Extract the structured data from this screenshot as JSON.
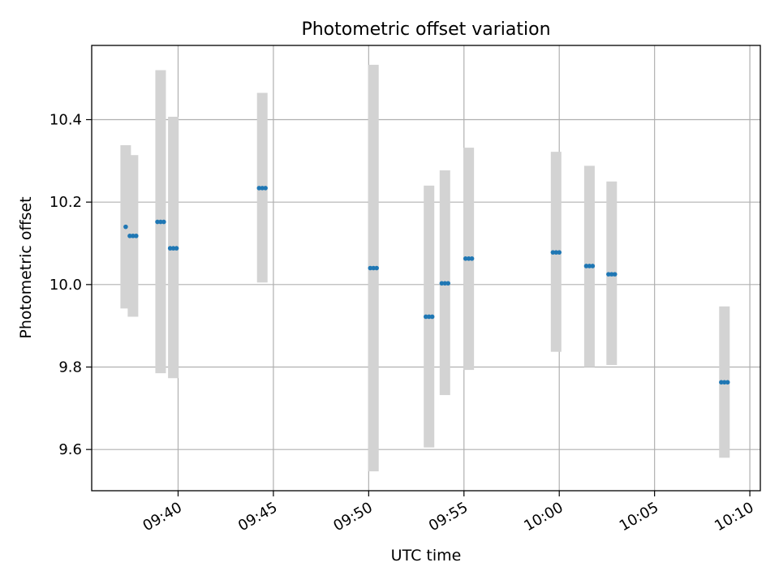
{
  "chart_data": {
    "type": "scatter",
    "title": "Photometric offset variation",
    "xlabel": "UTC time",
    "ylabel": "Photometric offset",
    "x_ticks": [
      "09:40",
      "09:45",
      "09:50",
      "09:55",
      "10:00",
      "10:05",
      "10:10"
    ],
    "y_ticks": [
      "9.6",
      "9.8",
      "10.0",
      "10.2",
      "10.4"
    ],
    "xlim": [
      "09:35:28",
      "10:10:33"
    ],
    "ylim": [
      9.5,
      10.58
    ],
    "grid": true,
    "colors": {
      "point": "#1f77b4",
      "range_bar": "#d3d3d3",
      "grid": "#b0b0b0"
    },
    "series": [
      {
        "points": [
          {
            "x": "09:37:15",
            "y": 10.14
          },
          {
            "x": "09:37:28",
            "y": 10.118
          },
          {
            "x": "09:37:38",
            "y": 10.118
          },
          {
            "x": "09:37:48",
            "y": 10.118
          },
          {
            "x": "09:38:55",
            "y": 10.152
          },
          {
            "x": "09:39:05",
            "y": 10.152
          },
          {
            "x": "09:39:15",
            "y": 10.152
          },
          {
            "x": "09:39:35",
            "y": 10.088
          },
          {
            "x": "09:39:45",
            "y": 10.088
          },
          {
            "x": "09:39:55",
            "y": 10.088
          },
          {
            "x": "09:44:15",
            "y": 10.234
          },
          {
            "x": "09:44:25",
            "y": 10.234
          },
          {
            "x": "09:44:35",
            "y": 10.234
          },
          {
            "x": "09:50:05",
            "y": 10.04
          },
          {
            "x": "09:50:15",
            "y": 10.04
          },
          {
            "x": "09:50:25",
            "y": 10.04
          },
          {
            "x": "09:53:00",
            "y": 9.922
          },
          {
            "x": "09:53:10",
            "y": 9.922
          },
          {
            "x": "09:53:20",
            "y": 9.922
          },
          {
            "x": "09:53:50",
            "y": 10.003
          },
          {
            "x": "09:54:00",
            "y": 10.003
          },
          {
            "x": "09:54:10",
            "y": 10.003
          },
          {
            "x": "09:55:05",
            "y": 10.063
          },
          {
            "x": "09:55:15",
            "y": 10.063
          },
          {
            "x": "09:55:25",
            "y": 10.063
          },
          {
            "x": "09:59:40",
            "y": 10.078
          },
          {
            "x": "09:59:50",
            "y": 10.078
          },
          {
            "x": "10:00:00",
            "y": 10.078
          },
          {
            "x": "10:01:25",
            "y": 10.045
          },
          {
            "x": "10:01:35",
            "y": 10.045
          },
          {
            "x": "10:01:45",
            "y": 10.045
          },
          {
            "x": "10:02:35",
            "y": 10.025
          },
          {
            "x": "10:02:45",
            "y": 10.025
          },
          {
            "x": "10:02:55",
            "y": 10.025
          },
          {
            "x": "10:08:30",
            "y": 9.763
          },
          {
            "x": "10:08:40",
            "y": 9.763
          },
          {
            "x": "10:08:50",
            "y": 9.763
          }
        ],
        "ranges": [
          {
            "x": "09:37:15",
            "low": 9.942,
            "high": 10.338
          },
          {
            "x": "09:37:38",
            "low": 9.922,
            "high": 10.314
          },
          {
            "x": "09:39:05",
            "low": 9.785,
            "high": 10.52
          },
          {
            "x": "09:39:45",
            "low": 9.773,
            "high": 10.407
          },
          {
            "x": "09:44:25",
            "low": 10.005,
            "high": 10.465
          },
          {
            "x": "09:50:15",
            "low": 9.547,
            "high": 10.533
          },
          {
            "x": "09:53:10",
            "low": 9.605,
            "high": 10.24
          },
          {
            "x": "09:54:00",
            "low": 9.732,
            "high": 10.277
          },
          {
            "x": "09:55:15",
            "low": 9.793,
            "high": 10.332
          },
          {
            "x": "09:59:50",
            "low": 9.837,
            "high": 10.322
          },
          {
            "x": "10:01:35",
            "low": 9.8,
            "high": 10.288
          },
          {
            "x": "10:02:45",
            "low": 9.805,
            "high": 10.25
          },
          {
            "x": "10:08:40",
            "low": 9.58,
            "high": 9.947
          }
        ]
      }
    ]
  }
}
